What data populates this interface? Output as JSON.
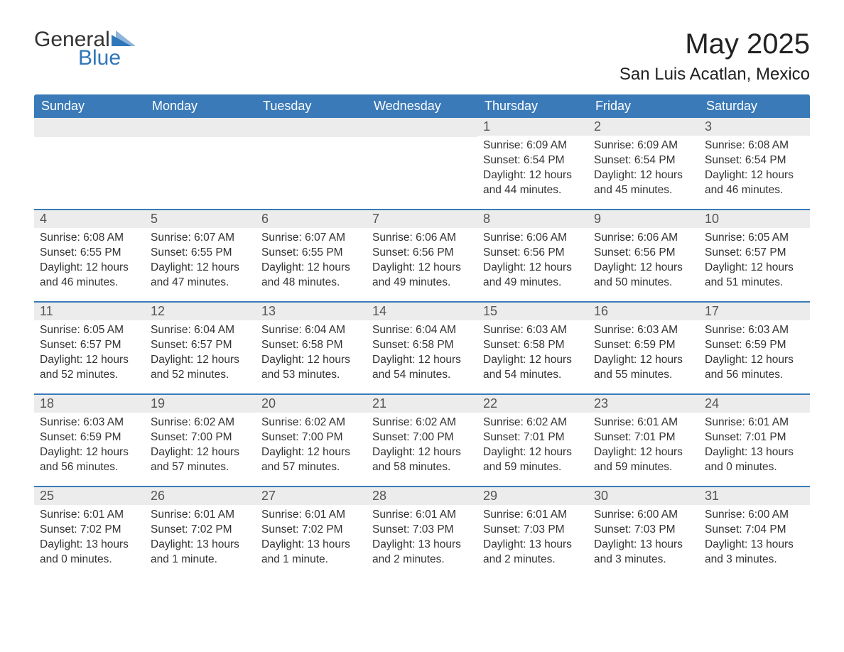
{
  "brand": {
    "text1": "General",
    "text2": "Blue",
    "accent_color": "#2f76bb"
  },
  "title": "May 2025",
  "location": "San Luis Acatlan, Mexico",
  "colors": {
    "header_bg": "#3a7ab8",
    "header_text": "#ffffff",
    "daynum_bg": "#ececec",
    "daynum_text": "#555555",
    "body_text": "#333333",
    "week_border": "#3a7ab8",
    "page_bg": "#ffffff"
  },
  "weekdays": [
    "Sunday",
    "Monday",
    "Tuesday",
    "Wednesday",
    "Thursday",
    "Friday",
    "Saturday"
  ],
  "weeks": [
    [
      null,
      null,
      null,
      null,
      {
        "n": "1",
        "sunrise": "6:09 AM",
        "sunset": "6:54 PM",
        "daylight": "12 hours and 44 minutes."
      },
      {
        "n": "2",
        "sunrise": "6:09 AM",
        "sunset": "6:54 PM",
        "daylight": "12 hours and 45 minutes."
      },
      {
        "n": "3",
        "sunrise": "6:08 AM",
        "sunset": "6:54 PM",
        "daylight": "12 hours and 46 minutes."
      }
    ],
    [
      {
        "n": "4",
        "sunrise": "6:08 AM",
        "sunset": "6:55 PM",
        "daylight": "12 hours and 46 minutes."
      },
      {
        "n": "5",
        "sunrise": "6:07 AM",
        "sunset": "6:55 PM",
        "daylight": "12 hours and 47 minutes."
      },
      {
        "n": "6",
        "sunrise": "6:07 AM",
        "sunset": "6:55 PM",
        "daylight": "12 hours and 48 minutes."
      },
      {
        "n": "7",
        "sunrise": "6:06 AM",
        "sunset": "6:56 PM",
        "daylight": "12 hours and 49 minutes."
      },
      {
        "n": "8",
        "sunrise": "6:06 AM",
        "sunset": "6:56 PM",
        "daylight": "12 hours and 49 minutes."
      },
      {
        "n": "9",
        "sunrise": "6:06 AM",
        "sunset": "6:56 PM",
        "daylight": "12 hours and 50 minutes."
      },
      {
        "n": "10",
        "sunrise": "6:05 AM",
        "sunset": "6:57 PM",
        "daylight": "12 hours and 51 minutes."
      }
    ],
    [
      {
        "n": "11",
        "sunrise": "6:05 AM",
        "sunset": "6:57 PM",
        "daylight": "12 hours and 52 minutes."
      },
      {
        "n": "12",
        "sunrise": "6:04 AM",
        "sunset": "6:57 PM",
        "daylight": "12 hours and 52 minutes."
      },
      {
        "n": "13",
        "sunrise": "6:04 AM",
        "sunset": "6:58 PM",
        "daylight": "12 hours and 53 minutes."
      },
      {
        "n": "14",
        "sunrise": "6:04 AM",
        "sunset": "6:58 PM",
        "daylight": "12 hours and 54 minutes."
      },
      {
        "n": "15",
        "sunrise": "6:03 AM",
        "sunset": "6:58 PM",
        "daylight": "12 hours and 54 minutes."
      },
      {
        "n": "16",
        "sunrise": "6:03 AM",
        "sunset": "6:59 PM",
        "daylight": "12 hours and 55 minutes."
      },
      {
        "n": "17",
        "sunrise": "6:03 AM",
        "sunset": "6:59 PM",
        "daylight": "12 hours and 56 minutes."
      }
    ],
    [
      {
        "n": "18",
        "sunrise": "6:03 AM",
        "sunset": "6:59 PM",
        "daylight": "12 hours and 56 minutes."
      },
      {
        "n": "19",
        "sunrise": "6:02 AM",
        "sunset": "7:00 PM",
        "daylight": "12 hours and 57 minutes."
      },
      {
        "n": "20",
        "sunrise": "6:02 AM",
        "sunset": "7:00 PM",
        "daylight": "12 hours and 57 minutes."
      },
      {
        "n": "21",
        "sunrise": "6:02 AM",
        "sunset": "7:00 PM",
        "daylight": "12 hours and 58 minutes."
      },
      {
        "n": "22",
        "sunrise": "6:02 AM",
        "sunset": "7:01 PM",
        "daylight": "12 hours and 59 minutes."
      },
      {
        "n": "23",
        "sunrise": "6:01 AM",
        "sunset": "7:01 PM",
        "daylight": "12 hours and 59 minutes."
      },
      {
        "n": "24",
        "sunrise": "6:01 AM",
        "sunset": "7:01 PM",
        "daylight": "13 hours and 0 minutes."
      }
    ],
    [
      {
        "n": "25",
        "sunrise": "6:01 AM",
        "sunset": "7:02 PM",
        "daylight": "13 hours and 0 minutes."
      },
      {
        "n": "26",
        "sunrise": "6:01 AM",
        "sunset": "7:02 PM",
        "daylight": "13 hours and 1 minute."
      },
      {
        "n": "27",
        "sunrise": "6:01 AM",
        "sunset": "7:02 PM",
        "daylight": "13 hours and 1 minute."
      },
      {
        "n": "28",
        "sunrise": "6:01 AM",
        "sunset": "7:03 PM",
        "daylight": "13 hours and 2 minutes."
      },
      {
        "n": "29",
        "sunrise": "6:01 AM",
        "sunset": "7:03 PM",
        "daylight": "13 hours and 2 minutes."
      },
      {
        "n": "30",
        "sunrise": "6:00 AM",
        "sunset": "7:03 PM",
        "daylight": "13 hours and 3 minutes."
      },
      {
        "n": "31",
        "sunrise": "6:00 AM",
        "sunset": "7:04 PM",
        "daylight": "13 hours and 3 minutes."
      }
    ]
  ],
  "labels": {
    "sunrise": "Sunrise: ",
    "sunset": "Sunset: ",
    "daylight": "Daylight: "
  }
}
